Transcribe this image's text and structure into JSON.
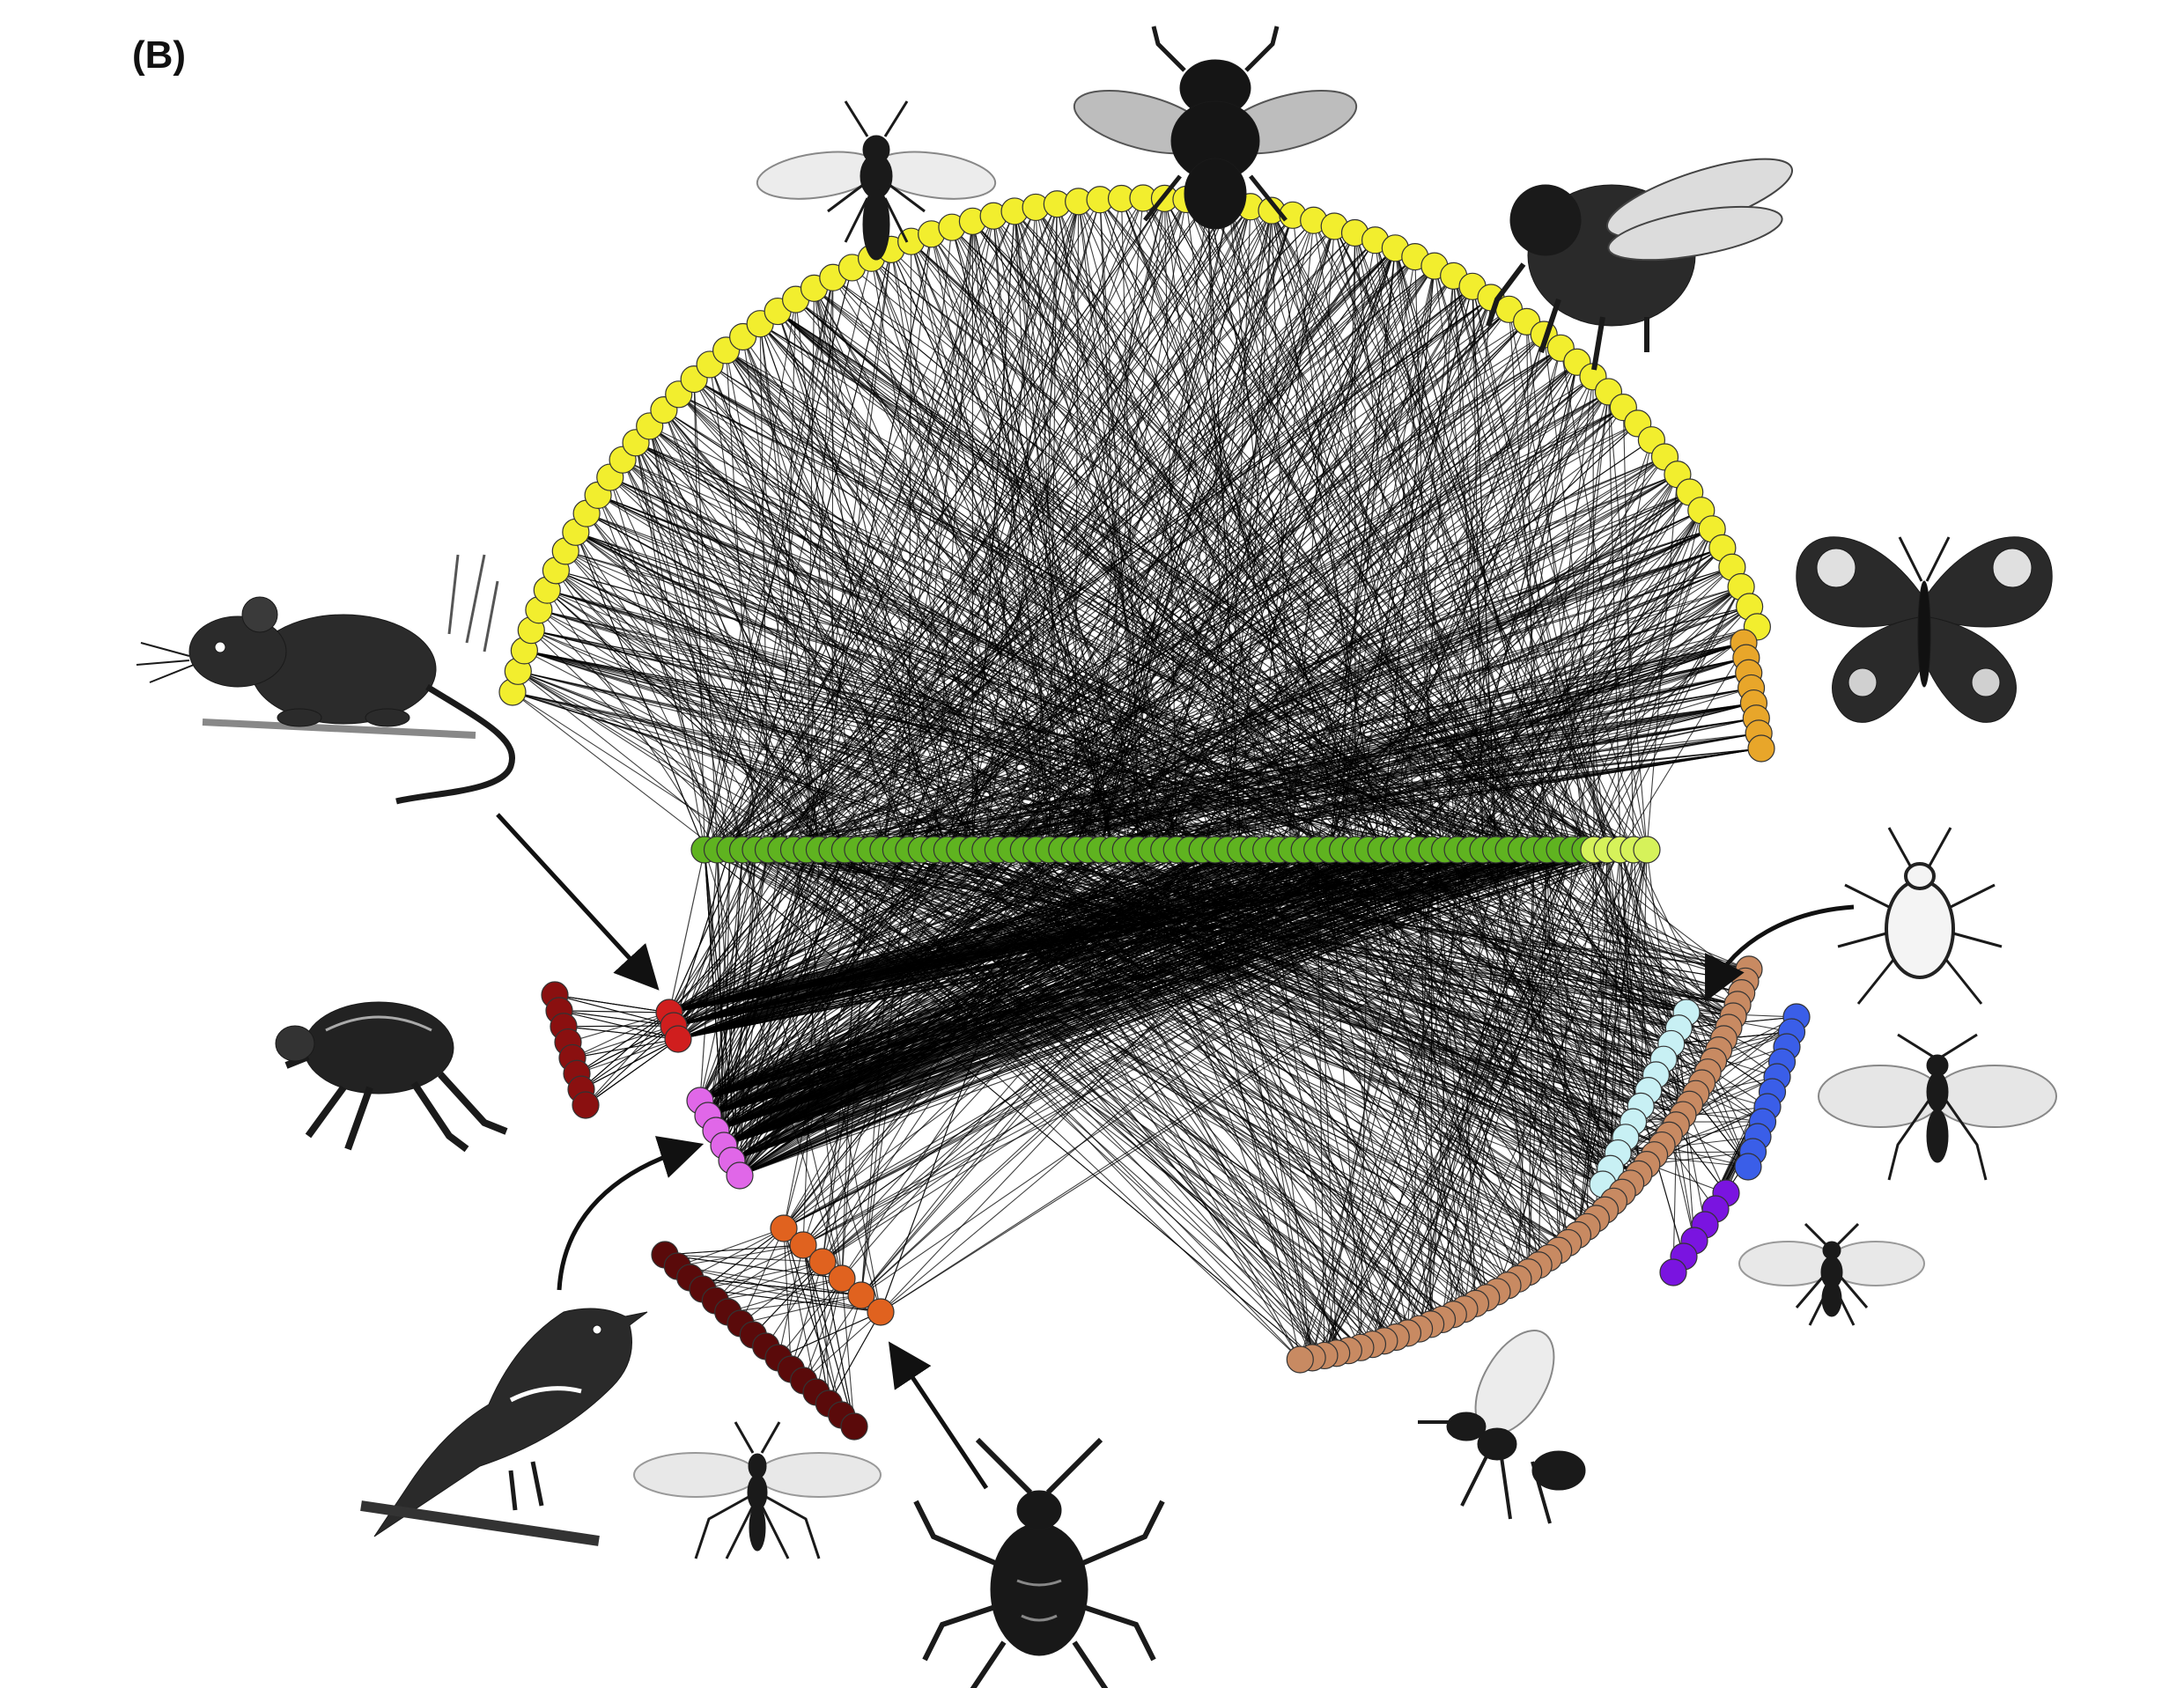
{
  "panel_label": "(B)",
  "network": {
    "type": "circular-bipartite-network",
    "node_outline": "#333333",
    "edge_color": "#000000",
    "guilds": [
      {
        "id": "bees-flies-butterflies",
        "color": "#f2ee2e",
        "nodes": 78
      },
      {
        "id": "butterflies",
        "color": "#e8a62a",
        "nodes": 8
      },
      {
        "id": "plants",
        "color": "#5fb320",
        "nodes": 70
      },
      {
        "id": "plants-light",
        "color": "#d6f25a",
        "nodes": 5
      },
      {
        "id": "aphids",
        "color": "#c8f0f4",
        "nodes": 12
      },
      {
        "id": "aphid-parasitoids",
        "color": "#3a5ee8",
        "nodes": 11
      },
      {
        "id": "secondary-parasitoids",
        "color": "#7a14e0",
        "nodes": 6
      },
      {
        "id": "leaf-miner-parasitoids",
        "color": "#c88a62",
        "nodes": 52
      },
      {
        "id": "seed-weevils",
        "color": "#e0621f",
        "nodes": 6
      },
      {
        "id": "seed-parasitoids",
        "color": "#5a0a0a",
        "nodes": 16
      },
      {
        "id": "birds",
        "color": "#e067e8",
        "nodes": 6
      },
      {
        "id": "mammals",
        "color": "#d01e1e",
        "nodes": 3
      },
      {
        "id": "fleas",
        "color": "#8a1010",
        "nodes": 8
      }
    ],
    "icons": [
      "mouse-icon",
      "flea-icon",
      "bird-icon",
      "parasitoid-wasp-icon",
      "weevil-icon",
      "wasp-icon",
      "bee-icon",
      "fly-icon",
      "bumblebee-icon",
      "butterfly-icon",
      "aphid-icon",
      "aphid-parasitoid-icon",
      "hyperparasitoid-icon"
    ]
  }
}
